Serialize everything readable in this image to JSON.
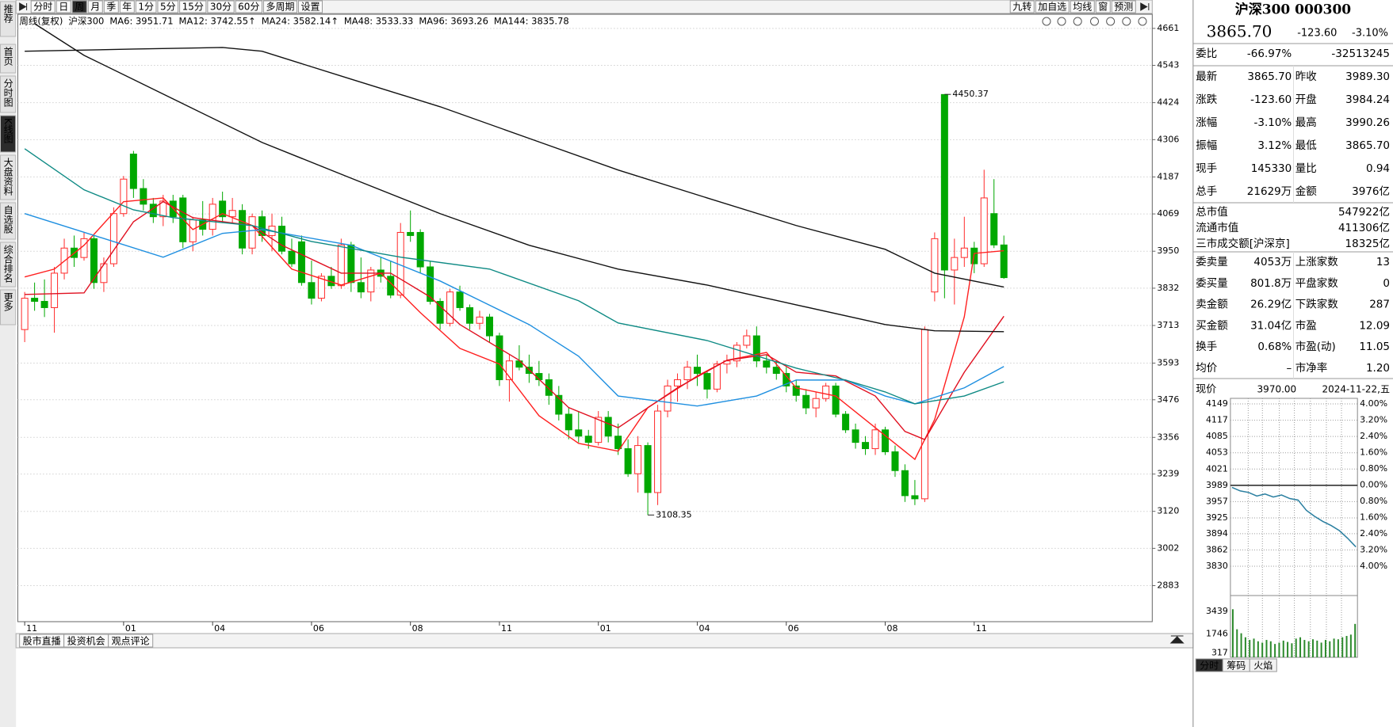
{
  "sidebar": {
    "items": [
      "推荐",
      "首页",
      "分时图",
      "K线图",
      "大盘资料",
      "自选股",
      "综合排名",
      "更多"
    ],
    "active": "K线图"
  },
  "toolbar": {
    "periods": [
      "分时",
      "日",
      "周",
      "月",
      "季",
      "年",
      "1分",
      "5分",
      "15分",
      "30分",
      "60分",
      "多周期",
      "设置"
    ],
    "active": "周",
    "tools": [
      "九转",
      "加自选",
      "均线",
      "窗",
      "预测"
    ]
  },
  "legend": [
    {
      "text": "周线(复权)",
      "color": "#22229a"
    },
    {
      "text": "沪深300",
      "color": "#1a5fd0"
    },
    {
      "text": "MA6: 3951.71",
      "color": "#e01515"
    },
    {
      "text": "MA12: 3742.55↑",
      "color": "#c0102a"
    },
    {
      "text": "MA24: 3582.14↑",
      "color": "#1e8fe0"
    },
    {
      "text": "MA48: 3533.33",
      "color": "#0e8a84"
    },
    {
      "text": "MA96: 3693.26",
      "color": "#111111"
    },
    {
      "text": "MA144: 3835.78",
      "color": "#111111"
    }
  ],
  "chart_data": {
    "type": "candlestick",
    "up_color": "#ff2a2a",
    "down_color": "#00a800",
    "grid": true,
    "xlim": [
      -0.7,
      114
    ],
    "xticks": [
      {
        "value": 0,
        "label": "11"
      },
      {
        "value": 10,
        "label": "01"
      },
      {
        "value": 19,
        "label": "04"
      },
      {
        "value": 29,
        "label": "06"
      },
      {
        "value": 39,
        "label": "08"
      },
      {
        "value": 48,
        "label": "11"
      },
      {
        "value": 58,
        "label": "01"
      },
      {
        "value": 68,
        "label": "04"
      },
      {
        "value": 77,
        "label": "06"
      },
      {
        "value": 87,
        "label": "08"
      },
      {
        "value": 96,
        "label": "11"
      }
    ],
    "ylim": [
      2768,
      4701
    ],
    "yticks": [
      4661,
      4543,
      4424,
      4306,
      4187,
      4069,
      3950,
      3832,
      3713,
      3593,
      3476,
      3356,
      3239,
      3120,
      3002,
      2883
    ],
    "ohlc": [
      [
        3700,
        3820,
        3660,
        3800
      ],
      [
        3800,
        3850,
        3760,
        3790
      ],
      [
        3790,
        3860,
        3740,
        3770
      ],
      [
        3770,
        3900,
        3690,
        3880
      ],
      [
        3880,
        3990,
        3860,
        3960
      ],
      [
        3960,
        4000,
        3900,
        3930
      ],
      [
        3930,
        4010,
        3920,
        3990
      ],
      [
        3990,
        4000,
        3830,
        3850
      ],
      [
        3850,
        3930,
        3820,
        3910
      ],
      [
        3910,
        4090,
        3900,
        4070
      ],
      [
        4070,
        4190,
        4060,
        4180
      ],
      [
        4260,
        4270,
        4120,
        4150
      ],
      [
        4150,
        4180,
        4080,
        4100
      ],
      [
        4100,
        4120,
        4040,
        4060
      ],
      [
        4060,
        4130,
        4030,
        4110
      ],
      [
        4110,
        4130,
        4040,
        4060
      ],
      [
        4120,
        4130,
        3960,
        3980
      ],
      [
        3980,
        4060,
        3950,
        4050
      ],
      [
        4050,
        4110,
        4000,
        4020
      ],
      [
        4020,
        4120,
        4000,
        4100
      ],
      [
        4110,
        4140,
        4040,
        4060
      ],
      [
        4060,
        4120,
        4040,
        4080
      ],
      [
        4080,
        4100,
        3940,
        3960
      ],
      [
        3960,
        4070,
        3940,
        4060
      ],
      [
        4060,
        4080,
        3980,
        4000
      ],
      [
        4000,
        4070,
        3950,
        4030
      ],
      [
        4030,
        4060,
        3940,
        3950
      ],
      [
        3950,
        3990,
        3900,
        3910
      ],
      [
        3980,
        4000,
        3840,
        3850
      ],
      [
        3850,
        3920,
        3780,
        3800
      ],
      [
        3800,
        3880,
        3790,
        3870
      ],
      [
        3870,
        3900,
        3830,
        3840
      ],
      [
        3840,
        3990,
        3830,
        3970
      ],
      [
        3970,
        3980,
        3820,
        3850
      ],
      [
        3850,
        3930,
        3800,
        3820
      ],
      [
        3820,
        3900,
        3790,
        3890
      ],
      [
        3890,
        3930,
        3850,
        3870
      ],
      [
        3870,
        3920,
        3800,
        3810
      ],
      [
        3810,
        4040,
        3800,
        4010
      ],
      [
        4010,
        4080,
        3980,
        4000
      ],
      [
        4010,
        4020,
        3880,
        3900
      ],
      [
        3900,
        3920,
        3780,
        3790
      ],
      [
        3790,
        3800,
        3700,
        3720
      ],
      [
        3720,
        3830,
        3710,
        3820
      ],
      [
        3820,
        3840,
        3760,
        3770
      ],
      [
        3770,
        3780,
        3700,
        3720
      ],
      [
        3720,
        3760,
        3700,
        3740
      ],
      [
        3740,
        3750,
        3660,
        3680
      ],
      [
        3680,
        3690,
        3520,
        3540
      ],
      [
        3540,
        3620,
        3470,
        3600
      ],
      [
        3600,
        3650,
        3570,
        3580
      ],
      [
        3580,
        3620,
        3530,
        3560
      ],
      [
        3560,
        3600,
        3520,
        3540
      ],
      [
        3540,
        3560,
        3460,
        3490
      ],
      [
        3490,
        3520,
        3410,
        3430
      ],
      [
        3430,
        3450,
        3350,
        3380
      ],
      [
        3380,
        3440,
        3340,
        3360
      ],
      [
        3360,
        3380,
        3320,
        3340
      ],
      [
        3340,
        3440,
        3330,
        3420
      ],
      [
        3420,
        3440,
        3340,
        3360
      ],
      [
        3360,
        3400,
        3300,
        3320
      ],
      [
        3320,
        3350,
        3230,
        3240
      ],
      [
        3240,
        3360,
        3180,
        3330
      ],
      [
        3330,
        3340,
        3108.35,
        3180
      ],
      [
        3180,
        3460,
        3140,
        3440
      ],
      [
        3440,
        3540,
        3420,
        3520
      ],
      [
        3520,
        3560,
        3470,
        3540
      ],
      [
        3540,
        3600,
        3510,
        3580
      ],
      [
        3580,
        3620,
        3520,
        3560
      ],
      [
        3560,
        3570,
        3480,
        3510
      ],
      [
        3510,
        3600,
        3500,
        3590
      ],
      [
        3590,
        3620,
        3560,
        3600
      ],
      [
        3600,
        3660,
        3580,
        3650
      ],
      [
        3650,
        3700,
        3640,
        3680
      ],
      [
        3680,
        3710,
        3580,
        3600
      ],
      [
        3600,
        3620,
        3560,
        3580
      ],
      [
        3580,
        3600,
        3540,
        3560
      ],
      [
        3560,
        3580,
        3500,
        3520
      ],
      [
        3520,
        3540,
        3470,
        3490
      ],
      [
        3490,
        3510,
        3430,
        3450
      ],
      [
        3450,
        3500,
        3420,
        3480
      ],
      [
        3480,
        3530,
        3470,
        3520
      ],
      [
        3520,
        3530,
        3420,
        3430
      ],
      [
        3430,
        3440,
        3370,
        3380
      ],
      [
        3380,
        3400,
        3320,
        3340
      ],
      [
        3340,
        3360,
        3300,
        3320
      ],
      [
        3320,
        3400,
        3300,
        3380
      ],
      [
        3380,
        3390,
        3300,
        3310
      ],
      [
        3310,
        3330,
        3230,
        3250
      ],
      [
        3250,
        3270,
        3150,
        3170
      ],
      [
        3170,
        3220,
        3140,
        3160
      ],
      [
        3160,
        3710,
        3150,
        3700
      ],
      [
        3820,
        4010,
        3790,
        3990
      ],
      [
        4450,
        4450.37,
        3800,
        3890
      ],
      [
        3890,
        3990,
        3780,
        3930
      ],
      [
        3930,
        4060,
        3900,
        3960
      ],
      [
        3960,
        3980,
        3880,
        3910
      ],
      [
        3910,
        4210,
        3900,
        4120
      ],
      [
        4070,
        4180,
        3960,
        3970
      ],
      [
        3970,
        4000,
        3862,
        3865.7
      ]
    ],
    "series": [
      {
        "name": "MA6",
        "color": "#ff2020",
        "x": [
          0,
          3,
          6,
          10,
          14,
          17,
          20,
          23,
          27,
          32,
          36,
          40,
          44,
          48,
          52,
          56,
          60,
          63,
          68,
          71,
          75,
          78,
          82,
          86,
          90,
          92,
          95,
          96,
          99
        ],
        "values": [
          3868,
          3893,
          3969,
          4108,
          4120,
          4019,
          4070,
          4032,
          3893,
          3842,
          3880,
          3754,
          3640,
          3590,
          3425,
          3337,
          3312,
          3451,
          3552,
          3602,
          3627,
          3514,
          3488,
          3387,
          3286,
          3413,
          3741,
          3943,
          3951.71
        ]
      },
      {
        "name": "MA12",
        "color": "#e01020",
        "x": [
          0,
          6,
          11,
          14,
          17,
          23,
          26,
          32,
          37,
          41,
          44,
          50,
          55,
          60,
          66,
          71,
          75,
          78,
          82,
          86,
          89,
          91,
          95,
          99
        ],
        "values": [
          3812,
          3817,
          4044,
          4108,
          4057,
          4032,
          3969,
          3880,
          3880,
          3804,
          3716,
          3602,
          3451,
          3387,
          3514,
          3602,
          3620,
          3564,
          3552,
          3488,
          3375,
          3349,
          3564,
          3742.55
        ]
      },
      {
        "name": "MA24",
        "color": "#1e8fe0",
        "x": [
          0,
          14,
          20,
          24,
          33,
          42,
          51,
          56,
          60,
          68,
          74,
          78,
          83,
          87,
          90,
          95,
          99
        ],
        "values": [
          4070,
          3931,
          4007,
          4019,
          3969,
          3855,
          3716,
          3615,
          3488,
          3456,
          3488,
          3539,
          3539,
          3488,
          3463,
          3514,
          3582.14
        ]
      },
      {
        "name": "MA48",
        "color": "#0e8a84",
        "x": [
          0,
          6,
          11,
          15,
          23,
          29,
          38,
          47,
          56,
          60,
          69,
          78,
          83,
          87,
          90,
          95,
          99
        ],
        "values": [
          4277,
          4146,
          4082,
          4057,
          4032,
          3981,
          3931,
          3893,
          3792,
          3721,
          3665,
          3577,
          3539,
          3501,
          3463,
          3488,
          3533.33
        ]
      },
      {
        "name": "MA96",
        "color": "#111111",
        "x": [
          1,
          6,
          15,
          24,
          33,
          42,
          51,
          60,
          69,
          78,
          87,
          92,
          99
        ],
        "values": [
          4676,
          4575,
          4436,
          4297,
          4183,
          4070,
          3969,
          3893,
          3842,
          3779,
          3716,
          3696,
          3693.26
        ]
      },
      {
        "name": "MA144",
        "color": "#111111",
        "x": [
          0,
          11,
          20,
          24,
          33,
          42,
          51,
          60,
          69,
          78,
          87,
          92,
          99
        ],
        "values": [
          4588,
          4595,
          4600,
          4588,
          4499,
          4411,
          4310,
          4209,
          4120,
          4032,
          3956,
          3880,
          3835.78
        ]
      }
    ]
  },
  "bottom_tabs": [
    "股市直播",
    "投资机会",
    "观点评论"
  ],
  "quote": {
    "title": "沪深300 000300",
    "price": "3865.70",
    "change": "-123.60",
    "pct": "-3.10%",
    "color": "#009a00",
    "blocks": [
      [
        [
          {
            "text": "委比"
          },
          {
            "text": "-66.97%",
            "color": "#009a00"
          },
          {
            "text": "-32513245",
            "color": "#009a00"
          }
        ]
      ],
      [
        [
          {
            "text": "最新"
          },
          {
            "text": "3865.70",
            "color": "#009a00"
          },
          {
            "text": "昨收"
          },
          {
            "text": "3989.30"
          }
        ],
        [
          {
            "text": "涨跌"
          },
          {
            "text": "-123.60",
            "color": "#009a00"
          },
          {
            "text": "开盘"
          },
          {
            "text": "3984.24",
            "color": "#009a00"
          }
        ],
        [
          {
            "text": "涨幅"
          },
          {
            "text": "-3.10%",
            "color": "#009a00"
          },
          {
            "text": "最高"
          },
          {
            "text": "3990.26",
            "color": "#e00000"
          }
        ],
        [
          {
            "text": "振幅"
          },
          {
            "text": "3.12%",
            "color": "#009a00"
          },
          {
            "text": "最低"
          },
          {
            "text": "3865.70",
            "color": "#009a00"
          }
        ],
        [
          {
            "text": "现手"
          },
          {
            "text": "145330",
            "color": "#009a00"
          },
          {
            "text": "量比"
          },
          {
            "text": "0.94",
            "color": "#009a00"
          }
        ],
        [
          {
            "text": "总手"
          },
          {
            "text": "21629万",
            "color": "#009a00"
          },
          {
            "text": "金额"
          },
          {
            "text": "3976亿",
            "color": "#009a00"
          }
        ]
      ],
      [
        [
          {
            "text": "总市值"
          },
          {
            "text": "547922亿",
            "color": "#1a2aa0"
          }
        ],
        [
          {
            "text": "流通市值"
          },
          {
            "text": "411306亿",
            "color": "#1a2aa0"
          }
        ],
        [
          {
            "text": "三市成交额[沪深京]"
          },
          {
            "text": "18325亿",
            "color": "#1a2aa0"
          }
        ]
      ],
      [
        [
          {
            "text": "委卖量"
          },
          {
            "text": "4053万",
            "color": "#009a00"
          },
          {
            "text": "上涨家数"
          },
          {
            "text": "13",
            "color": "#e00000"
          }
        ],
        [
          {
            "text": "委买量"
          },
          {
            "text": "801.8万",
            "color": "#e00000"
          },
          {
            "text": "平盘家数"
          },
          {
            "text": "0",
            "color": "#1a2aa0"
          }
        ],
        [
          {
            "text": "卖金额"
          },
          {
            "text": "26.29亿",
            "color": "#009a00"
          },
          {
            "text": "下跌家数"
          },
          {
            "text": "287",
            "color": "#009a00"
          }
        ],
        [
          {
            "text": "买金额"
          },
          {
            "text": "31.04亿",
            "color": "#e00000"
          },
          {
            "text": "市盈"
          },
          {
            "text": "12.09"
          }
        ],
        [
          {
            "text": "换手"
          },
          {
            "text": "0.68%",
            "color": "#009a00"
          },
          {
            "text": "市盈(动)"
          },
          {
            "text": "11.05"
          }
        ],
        [
          {
            "text": "均价"
          },
          {
            "text": "–"
          },
          {
            "text": "市净率"
          },
          {
            "text": "1.20"
          }
        ]
      ]
    ]
  },
  "intraday": {
    "label": "现价",
    "price": "3970.00",
    "date": "2024-11-22,五",
    "prev_close": 3989,
    "ylim": [
      3830,
      4149
    ],
    "yticks": [
      4149,
      4117,
      4085,
      4053,
      4021,
      3989,
      3957,
      3925,
      3894,
      3862,
      3830
    ],
    "y2lim": [
      -4,
      4
    ],
    "y2ticks": [
      {
        "value": 4,
        "label": "4.00%"
      },
      {
        "value": 3.2,
        "label": "3.20%"
      },
      {
        "value": 2.4,
        "label": "2.40%"
      },
      {
        "value": 1.6,
        "label": "1.60%"
      },
      {
        "value": 0.8,
        "label": "0.80%"
      },
      {
        "value": 0,
        "label": "0.00%"
      },
      {
        "value": -0.8,
        "label": "0.80%"
      },
      {
        "value": -1.6,
        "label": "1.60%"
      },
      {
        "value": -2.4,
        "label": "2.40%"
      },
      {
        "value": -3.2,
        "label": "3.20%"
      },
      {
        "value": -4,
        "label": "4.00%"
      }
    ],
    "color": "#2a7fa0",
    "values": [
      3985,
      3978,
      3975,
      3968,
      3972,
      3966,
      3970,
      3963,
      3960,
      3940,
      3928,
      3918,
      3910,
      3900,
      3885,
      3868
    ],
    "volume": {
      "ylim": [
        0,
        4150
      ],
      "yticks": [
        3439,
        1746,
        317
      ],
      "color": "#2c8a2c",
      "values": [
        3600,
        2100,
        1800,
        1500,
        1300,
        1400,
        1200,
        1100,
        1300,
        1200,
        1000,
        1100,
        1250,
        1150,
        1050,
        1400,
        1500,
        1300,
        1200,
        1350,
        1250,
        1100,
        1300,
        1200,
        1400,
        1350,
        1500,
        1600,
        1700,
        2500
      ]
    }
  },
  "panel_tabs": {
    "items": [
      "分时",
      "筹码",
      "火焰"
    ],
    "active": "分时"
  }
}
